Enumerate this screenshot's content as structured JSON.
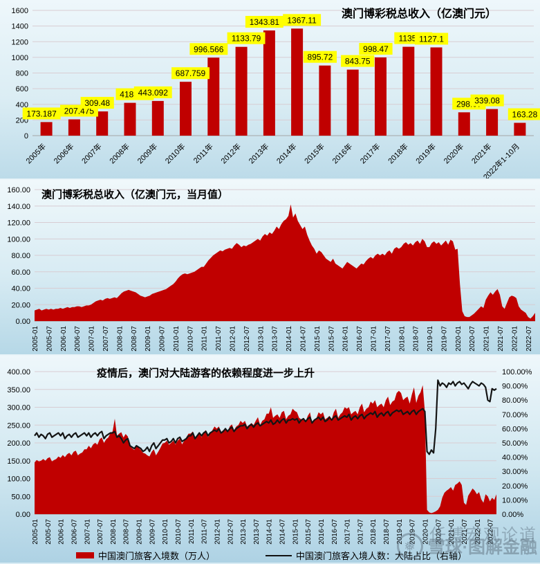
{
  "watermark": {
    "line1": "任博宏观论道",
    "line2": "雪球·图解金融",
    "logo_glyph": "❅"
  },
  "colors": {
    "bar_red": "#c00000",
    "area_red": "#c00000",
    "line_black": "#141414",
    "label_bg": "#ffff00",
    "grid": "#d8ccd2",
    "axis": "#a6a6a6"
  },
  "legend": {
    "item1": "中国澳门旅客入境数（万人）",
    "item2": "中国澳门旅客入境人数：大陆占比（右轴）"
  },
  "chart_data": [
    {
      "type": "bar",
      "title": "澳门博彩税总收入（亿澳门元）",
      "categories": [
        "2005年",
        "2006年",
        "2007年",
        "2008年",
        "2009年",
        "2010年",
        "2011年",
        "2012年",
        "2013年",
        "2014年",
        "2015年",
        "2016年",
        "2017年",
        "2018年",
        "2019年",
        "2020年",
        "2021年",
        "2022年1-10月"
      ],
      "values": [
        173.187,
        207.475,
        309.48,
        418.965,
        443.092,
        687.759,
        996.566,
        1133.79,
        1343.81,
        1367.11,
        895.72,
        843.75,
        998.47,
        1135.13,
        1127.1,
        298.07,
        339.08,
        163.28
      ],
      "labels": [
        "173.187",
        "207.475",
        "309.48",
        "418.965",
        "443.092",
        "687.759",
        "996.566",
        "1133.79",
        "1343.81",
        "1367.11",
        "895.72",
        "843.75",
        "998.47",
        "1135.13",
        "1127.1",
        "298.07",
        "339.08",
        "163.28"
      ],
      "ylim": [
        0,
        1600
      ],
      "yticks": [
        "0",
        "200",
        "400",
        "600",
        "800",
        "1000",
        "1200",
        "1400",
        "1600"
      ],
      "grid": true,
      "legend_position": "none"
    },
    {
      "type": "area",
      "title": "澳门博彩税总收入（亿澳门元，当月值）",
      "x_start": "2005-01",
      "x_end": "2022-10",
      "x_tick_labels": [
        "2005-01",
        "2005-07",
        "2006-01",
        "2006-07",
        "2007-01",
        "2007-07",
        "2008-01",
        "2008-07",
        "2009-01",
        "2009-07",
        "2010-01",
        "2010-07",
        "2011-01",
        "2011-07",
        "2012-01",
        "2012-07",
        "2013-01",
        "2013-07",
        "2014-01",
        "2014-07",
        "2015-01",
        "2015-07",
        "2016-01",
        "2016-07",
        "2017-01",
        "2017-07",
        "2018-01",
        "2018-07",
        "2019-01",
        "2019-07",
        "2020-01",
        "2020-07",
        "2021-01",
        "2021-07",
        "2022-01",
        "2022-07"
      ],
      "x_tick_every": 6,
      "ylim": [
        0,
        160
      ],
      "yticks": [
        "0.00",
        "20.00",
        "40.00",
        "60.00",
        "80.00",
        "100.00",
        "120.00",
        "140.00",
        "160.00"
      ],
      "grid": true,
      "legend_position": "none",
      "values": [
        13,
        14,
        15,
        13,
        14,
        15,
        14,
        15,
        14,
        15,
        15,
        16,
        15,
        16,
        17,
        16,
        17,
        17,
        18,
        18,
        17,
        18,
        19,
        19,
        20,
        22,
        24,
        25,
        26,
        25,
        27,
        28,
        27,
        28,
        29,
        28,
        31,
        34,
        36,
        37,
        38,
        37,
        36,
        35,
        33,
        31,
        30,
        29,
        30,
        31,
        33,
        34,
        35,
        36,
        37,
        38,
        39,
        41,
        43,
        45,
        48,
        52,
        55,
        57,
        58,
        57,
        58,
        59,
        60,
        62,
        64,
        66,
        66,
        70,
        74,
        77,
        80,
        82,
        84,
        86,
        85,
        87,
        88,
        89,
        88,
        92,
        95,
        93,
        90,
        92,
        91,
        93,
        94,
        96,
        98,
        100,
        98,
        103,
        106,
        104,
        108,
        106,
        110,
        115,
        112,
        118,
        122,
        124,
        128,
        142,
        126,
        131,
        122,
        117,
        112,
        115,
        105,
        98,
        92,
        88,
        82,
        86,
        84,
        80,
        76,
        74,
        72,
        76,
        70,
        68,
        66,
        64,
        68,
        72,
        70,
        68,
        66,
        64,
        67,
        70,
        69,
        73,
        76,
        78,
        76,
        80,
        82,
        80,
        82,
        80,
        84,
        86,
        82,
        88,
        90,
        88,
        90,
        94,
        96,
        93,
        95,
        92,
        96,
        98,
        94,
        100,
        97,
        90,
        90,
        95,
        97,
        94,
        96,
        92,
        95,
        98,
        93,
        99,
        97,
        87,
        88,
        45,
        12,
        6,
        5,
        5,
        7,
        9,
        12,
        15,
        18,
        16,
        26,
        31,
        35,
        32,
        36,
        39,
        32,
        18,
        15,
        22,
        29,
        31,
        30,
        28,
        18,
        14,
        12,
        10,
        5,
        3,
        6,
        10
      ]
    },
    {
      "type": "combo",
      "title": "疫情后，澳门对大陆游客的依赖程度进一步上升",
      "x_start": "2005-01",
      "x_end": "2022-10",
      "x_tick_labels": [
        "2005-01",
        "2005-07",
        "2006-01",
        "2006-07",
        "2007-01",
        "2007-07",
        "2008-01",
        "2008-07",
        "2009-01",
        "2009-07",
        "2010-01",
        "2010-07",
        "2011-01",
        "2011-07",
        "2012-01",
        "2012-07",
        "2013-01",
        "2013-07",
        "2014-01",
        "2014-07",
        "2015-01",
        "2015-07",
        "2016-01",
        "2016-07",
        "2017-01",
        "2017-07",
        "2018-01",
        "2018-07",
        "2019-01",
        "2019-07",
        "2020-01",
        "2020-07",
        "2021-01",
        "2021-07",
        "2022-01",
        "2022-07"
      ],
      "x_tick_every": 6,
      "ylim_left": [
        0,
        400
      ],
      "yticks_left": [
        "0.00",
        "50.00",
        "100.00",
        "150.00",
        "200.00",
        "250.00",
        "300.00",
        "350.00",
        "400.00"
      ],
      "ylim_right": [
        0,
        100
      ],
      "yticks_right": [
        "0.00%",
        "10.00%",
        "20.00%",
        "30.00%",
        "40.00%",
        "50.00%",
        "60.00%",
        "70.00%",
        "80.00%",
        "90.00%",
        "100.00%"
      ],
      "grid": true,
      "legend_position": "bottom",
      "series": [
        {
          "name": "中国澳门旅客入境数（万人）",
          "type": "area",
          "axis": "left",
          "values": [
            145,
            152,
            148,
            150,
            155,
            150,
            157,
            160,
            148,
            152,
            155,
            162,
            158,
            166,
            160,
            168,
            172,
            165,
            175,
            178,
            165,
            170,
            173,
            182,
            182,
            192,
            185,
            196,
            200,
            195,
            210,
            215,
            200,
            210,
            215,
            228,
            232,
            268,
            220,
            226,
            230,
            215,
            225,
            218,
            190,
            185,
            180,
            192,
            186,
            180,
            172,
            170,
            165,
            162,
            175,
            182,
            165,
            175,
            186,
            198,
            200,
            206,
            195,
            200,
            206,
            196,
            206,
            212,
            196,
            206,
            216,
            226,
            226,
            232,
            215,
            220,
            226,
            216,
            230,
            236,
            216,
            226,
            236,
            246,
            240,
            246,
            230,
            236,
            240,
            230,
            246,
            252,
            236,
            246,
            250,
            262,
            256,
            262,
            246,
            250,
            256,
            250,
            262,
            272,
            250,
            262,
            266,
            282,
            282,
            300,
            270,
            276,
            280,
            270,
            286,
            290,
            266,
            276,
            280,
            296,
            290,
            286,
            270,
            266,
            270,
            260,
            276,
            286,
            256,
            266,
            270,
            286,
            280,
            286,
            266,
            270,
            276,
            266,
            286,
            296,
            270,
            280,
            286,
            300,
            296,
            300,
            280,
            286,
            290,
            280,
            300,
            310,
            286,
            296,
            300,
            316,
            310,
            320,
            300,
            306,
            310,
            300,
            320,
            330,
            306,
            316,
            320,
            340,
            346,
            340,
            320,
            326,
            330,
            310,
            336,
            356,
            312,
            332,
            342,
            362,
            288,
            12,
            5,
            3,
            5,
            8,
            12,
            22,
            46,
            60,
            66,
            70,
            76,
            66,
            82,
            86,
            92,
            82,
            32,
            26,
            52,
            62,
            72,
            66,
            56,
            62,
            42,
            32,
            56,
            50,
            36,
            46,
            40,
            56
          ]
        },
        {
          "name": "中国澳门旅客入境人数：大陆占比（右轴）",
          "type": "line",
          "axis": "right",
          "values": [
            55,
            57,
            54,
            56,
            55,
            53,
            56,
            57,
            54,
            55,
            56,
            57,
            55,
            57,
            53,
            55,
            56,
            54,
            56,
            57,
            54,
            55,
            56,
            57,
            55,
            57,
            54,
            56,
            57,
            55,
            57,
            58,
            53,
            55,
            56,
            57,
            57,
            58,
            54,
            55,
            53,
            50,
            52,
            53,
            48,
            47,
            46,
            48,
            47,
            46,
            44,
            45,
            47,
            44,
            48,
            50,
            46,
            48,
            50,
            52,
            52,
            53,
            50,
            51,
            53,
            50,
            53,
            54,
            51,
            52,
            53,
            55,
            55,
            57,
            53,
            55,
            57,
            55,
            57,
            58,
            55,
            57,
            58,
            59,
            58,
            60,
            57,
            58,
            60,
            58,
            60,
            61,
            58,
            60,
            61,
            62,
            62,
            63,
            60,
            62,
            63,
            61,
            63,
            64,
            62,
            63,
            64,
            65,
            64,
            66,
            63,
            64,
            66,
            64,
            66,
            67,
            64,
            66,
            66,
            67,
            66,
            67,
            64,
            66,
            67,
            65,
            67,
            68,
            64,
            66,
            67,
            68,
            66,
            68,
            65,
            66,
            68,
            66,
            68,
            69,
            66,
            67,
            68,
            69,
            68,
            70,
            66,
            68,
            69,
            67,
            69,
            70,
            67,
            69,
            70,
            71,
            70,
            72,
            68,
            70,
            71,
            69,
            71,
            72,
            69,
            71,
            72,
            73,
            72,
            73,
            70,
            71,
            72,
            70,
            72,
            73,
            70,
            72,
            73,
            74,
            72,
            44,
            42,
            45,
            43,
            60,
            94,
            90,
            92,
            91,
            89,
            92,
            91,
            93,
            90,
            92,
            93,
            91,
            92,
            90,
            88,
            91,
            93,
            92,
            91,
            90,
            92,
            91,
            89,
            80,
            79,
            88,
            87,
            88
          ]
        }
      ]
    }
  ]
}
